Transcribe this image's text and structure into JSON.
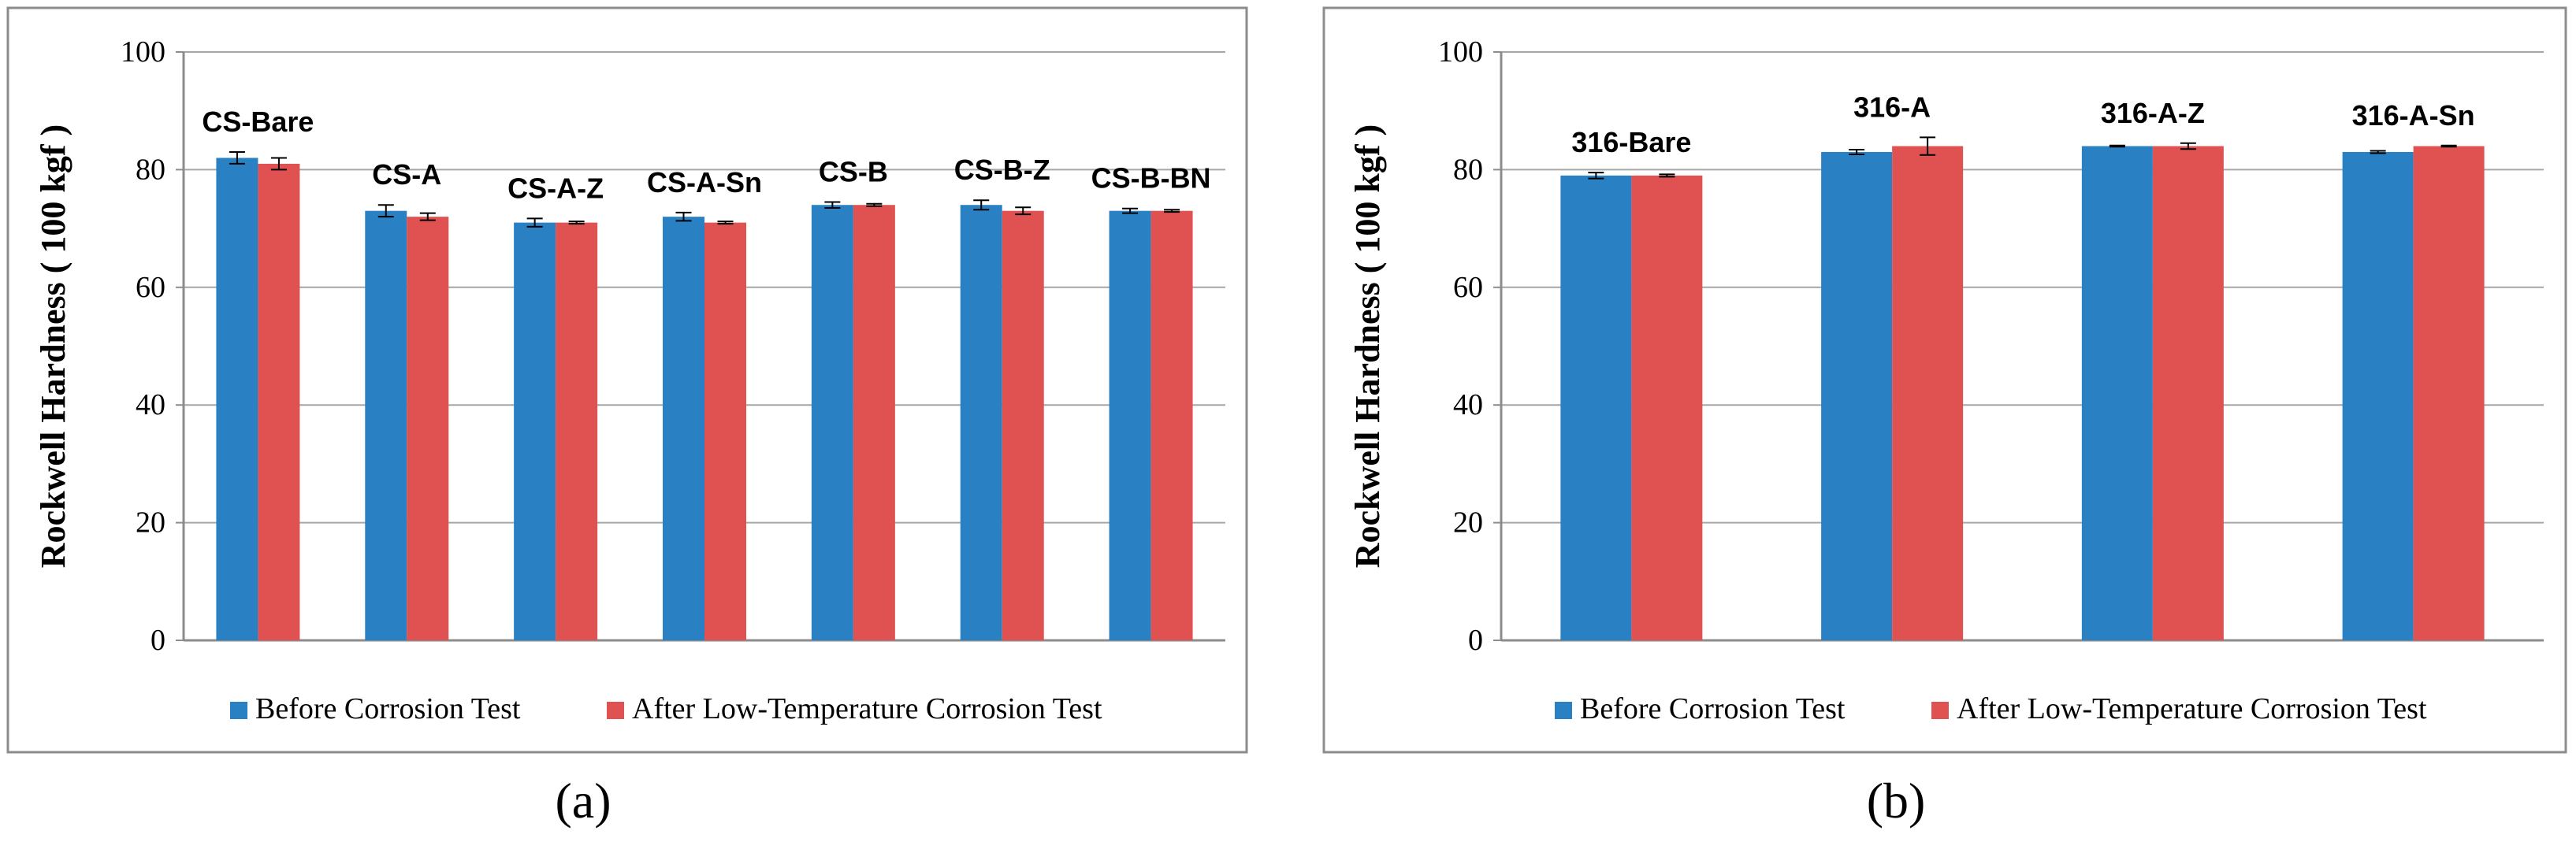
{
  "colors": {
    "before": "#2980c3",
    "after": "#e05252",
    "frame": "#8c8c8c",
    "grid": "#a6a6a6",
    "text": "#000000"
  },
  "chart_data": [
    {
      "type": "bar",
      "panel_label": "(a)",
      "ylabel": "Rockwell Hardness ( 100 kgf )",
      "ylim": [
        0,
        100
      ],
      "yticks": [
        0,
        20,
        40,
        60,
        80,
        100
      ],
      "grid": true,
      "legend_position": "bottom",
      "categories": [
        "CS-Bare",
        "CS-A",
        "CS-A-Z",
        "CS-A-Sn",
        "CS-B",
        "CS-B-Z",
        "CS-B-BN"
      ],
      "series": [
        {
          "name": "Before Corrosion Test",
          "values": [
            82,
            73,
            71,
            72,
            74,
            74,
            73
          ],
          "errors": [
            1,
            1,
            0.7,
            0.7,
            0.5,
            0.8,
            0.4
          ]
        },
        {
          "name": "After Low-Temperature Corrosion Test",
          "values": [
            81,
            72,
            71,
            71,
            74,
            73,
            73
          ],
          "errors": [
            1,
            0.6,
            0.2,
            0.2,
            0.2,
            0.6,
            0.2
          ]
        }
      ]
    },
    {
      "type": "bar",
      "panel_label": "(b)",
      "ylabel": "Rockwell Hardness ( 100 kgf )",
      "ylim": [
        0,
        100
      ],
      "yticks": [
        0,
        20,
        40,
        60,
        80,
        100
      ],
      "grid": true,
      "legend_position": "bottom",
      "categories": [
        "316-Bare",
        "316-A",
        "316-A-Z",
        "316-A-Sn"
      ],
      "series": [
        {
          "name": "Before Corrosion Test",
          "values": [
            79,
            83,
            84,
            83
          ],
          "errors": [
            0.5,
            0.4,
            0.1,
            0.2
          ]
        },
        {
          "name": "After Low-Temperature Corrosion Test",
          "values": [
            79,
            84,
            84,
            84
          ],
          "errors": [
            0.2,
            1.5,
            0.5,
            0.1
          ]
        }
      ]
    }
  ]
}
